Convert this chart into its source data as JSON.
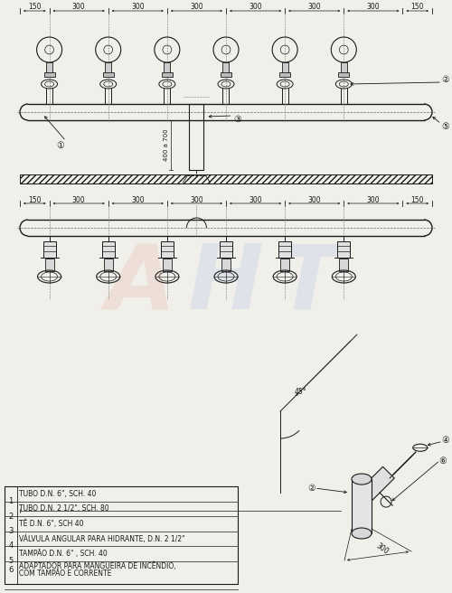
{
  "bg_color": "#f0efea",
  "line_color": "#1a1a1a",
  "legend_items": [
    [
      "1",
      "TUBO D.N. 6\", SCH. 40"
    ],
    [
      "2",
      "TUBO D.N. 2 1/2\", SCH. 80"
    ],
    [
      "3",
      "TÊ D.N. 6\", SCH 40"
    ],
    [
      "4",
      "VÁLVULA ANGULAR PARA HIDRANTE, D.N. 2 1/2\""
    ],
    [
      "5",
      "TAMPÃO D.N. 6\" , SCH. 40"
    ],
    [
      "6",
      "ADAPTADOR PARA MANGUEIRA DE INCÊNDIO,\n     COM TAMPÃO E CORRENTE"
    ]
  ],
  "dims": [
    150,
    300,
    300,
    300,
    300,
    300,
    300,
    150
  ],
  "label_400_700": "400 a 700",
  "label_45": "45°",
  "label_300": "300"
}
